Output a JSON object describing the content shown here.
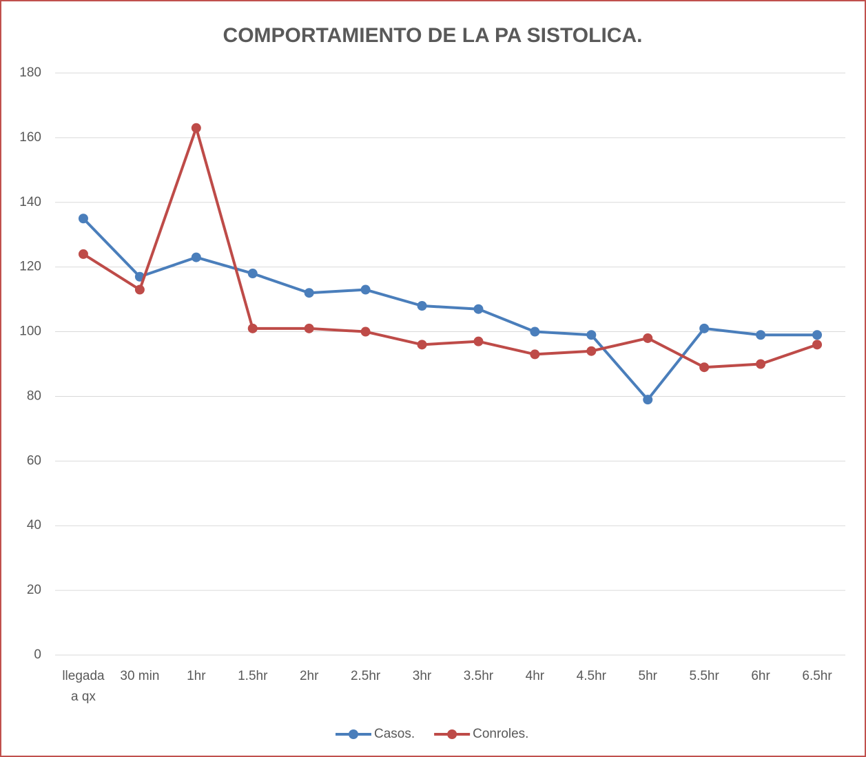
{
  "chart_data": {
    "type": "line",
    "title": "COMPORTAMIENTO DE LA PA SISTOLICA.",
    "categories": [
      "llegada a qx",
      "30 min",
      "1hr",
      "1.5hr",
      "2hr",
      "2.5hr",
      "3hr",
      "3.5hr",
      "4hr",
      "4.5hr",
      "5hr",
      "5.5hr",
      "6hr",
      "6.5hr"
    ],
    "series": [
      {
        "name": "Casos.",
        "color": "#4a7ebb",
        "values": [
          135,
          117,
          123,
          118,
          112,
          113,
          108,
          107,
          100,
          99,
          79,
          101,
          99,
          99
        ]
      },
      {
        "name": "Conroles.",
        "color": "#be4b48",
        "values": [
          124,
          113,
          163,
          101,
          101,
          100,
          96,
          97,
          93,
          94,
          98,
          89,
          90,
          96
        ]
      }
    ],
    "ylim": [
      0,
      180
    ],
    "yticks": [
      0,
      20,
      40,
      60,
      80,
      100,
      120,
      140,
      160,
      180
    ],
    "grid": true,
    "legend": "bottom"
  }
}
